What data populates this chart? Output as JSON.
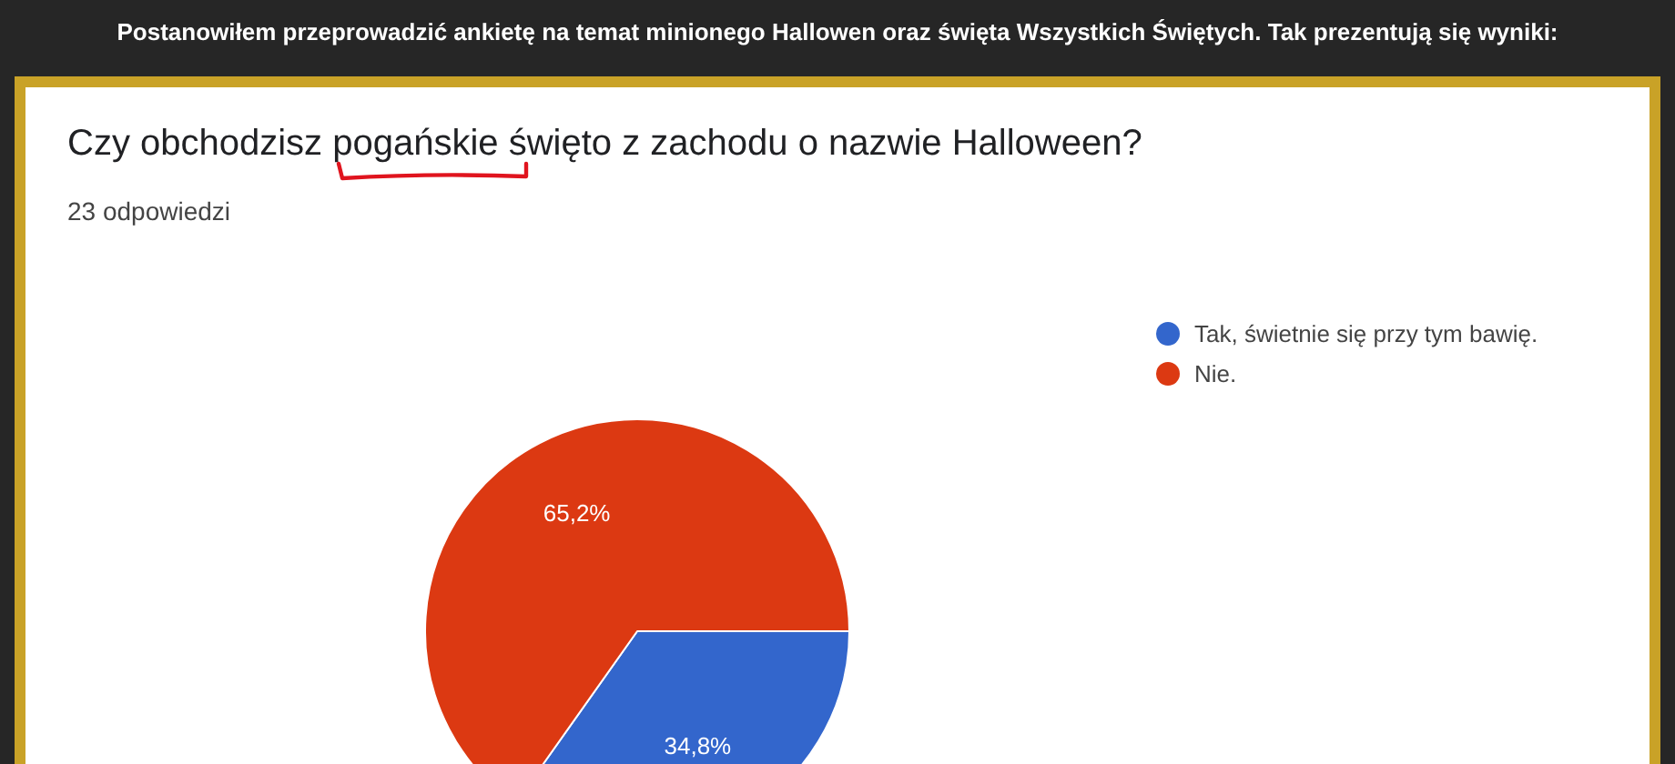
{
  "chart_data": {
    "type": "pie",
    "title": "Czy obchodzisz pogańskie święto z zachodu o nazwie Halloween?",
    "subtitle": "23 odpowiedzi",
    "annotations": [
      "Postanowiłem przeprowadzić ankietę na temat minionego Hallowen oraz święta Wszystkich Świętych. Tak prezentują się wyniki:"
    ],
    "categories": [
      "Tak, świetnie się przy tym bawię.",
      "Nie."
    ],
    "values": [
      34.8,
      65.2
    ],
    "value_labels": [
      "34,8%",
      "65,2%"
    ],
    "colors": [
      "#3366cc",
      "#dc3912"
    ],
    "legend": "top right"
  }
}
